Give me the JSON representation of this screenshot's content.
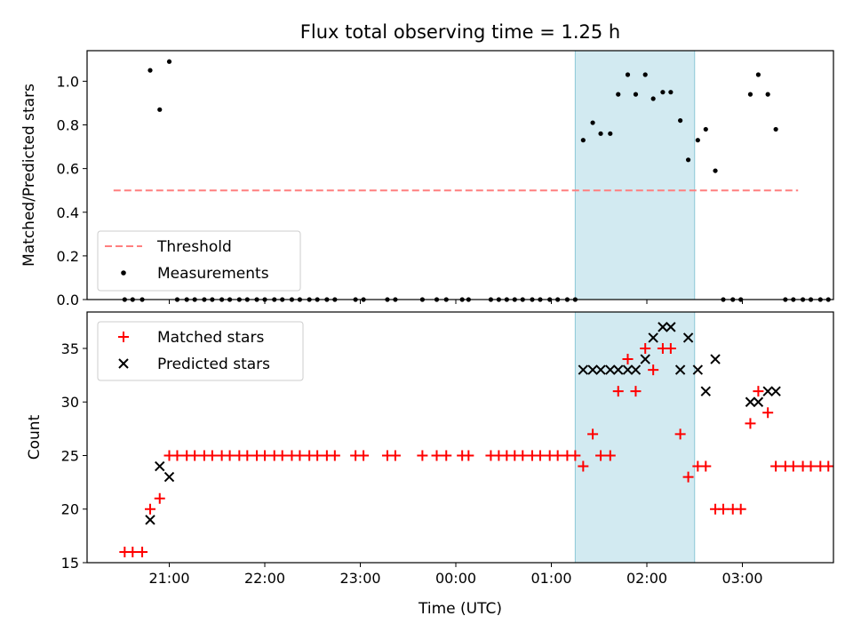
{
  "title": "Flux total observing time = 1.25 h",
  "xlabel": "Time (UTC)",
  "x_ticks": [
    "21:00",
    "22:00",
    "23:00",
    "00:00",
    "01:00",
    "02:00",
    "03:00"
  ],
  "colors": {
    "threshold": "#ff7f7f",
    "measurements": "#000000",
    "matched": "#ff0000",
    "predicted": "#000000",
    "observing_window": "#add8e6"
  },
  "observing_window": {
    "start": "01:15",
    "end": "02:30"
  },
  "chart_data": [
    {
      "type": "scatter",
      "ylabel": "Matched/Predicted stars",
      "ylim": [
        0,
        1.14
      ],
      "yticks": [
        "0.0",
        "0.2",
        "0.4",
        "0.6",
        "0.8",
        "1.0"
      ],
      "legend_position": "lower-left",
      "threshold": {
        "name": "Threshold",
        "value": 0.5,
        "x_start": "20:25",
        "x_end": "03:35"
      },
      "series": [
        {
          "name": "Measurements",
          "points": [
            [
              "20:32",
              0
            ],
            [
              "20:37",
              0
            ],
            [
              "20:43",
              0
            ],
            [
              "20:48",
              1.05
            ],
            [
              "20:54",
              0.87
            ],
            [
              "21:00",
              1.09
            ],
            [
              "21:05",
              0
            ],
            [
              "21:11",
              0
            ],
            [
              "21:16",
              0
            ],
            [
              "21:22",
              0
            ],
            [
              "21:27",
              0
            ],
            [
              "21:33",
              0
            ],
            [
              "21:38",
              0
            ],
            [
              "21:44",
              0
            ],
            [
              "21:49",
              0
            ],
            [
              "21:55",
              0
            ],
            [
              "22:00",
              0
            ],
            [
              "22:06",
              0
            ],
            [
              "22:11",
              0
            ],
            [
              "22:17",
              0
            ],
            [
              "22:22",
              0
            ],
            [
              "22:28",
              0
            ],
            [
              "22:33",
              0
            ],
            [
              "22:39",
              0
            ],
            [
              "22:44",
              0
            ],
            [
              "22:57",
              0
            ],
            [
              "23:02",
              0
            ],
            [
              "23:17",
              0
            ],
            [
              "23:22",
              0
            ],
            [
              "23:39",
              0
            ],
            [
              "23:48",
              0
            ],
            [
              "23:54",
              0
            ],
            [
              "00:04",
              0
            ],
            [
              "00:08",
              0
            ],
            [
              "00:22",
              0
            ],
            [
              "00:27",
              0
            ],
            [
              "00:32",
              0
            ],
            [
              "00:37",
              0
            ],
            [
              "00:42",
              0
            ],
            [
              "00:48",
              0
            ],
            [
              "00:53",
              0
            ],
            [
              "00:59",
              0
            ],
            [
              "01:04",
              0
            ],
            [
              "01:10",
              0
            ],
            [
              "01:15",
              0
            ],
            [
              "01:20",
              0.73
            ],
            [
              "01:26",
              0.81
            ],
            [
              "01:31",
              0.76
            ],
            [
              "01:37",
              0.76
            ],
            [
              "01:42",
              0.94
            ],
            [
              "01:48",
              1.03
            ],
            [
              "01:53",
              0.94
            ],
            [
              "01:59",
              1.03
            ],
            [
              "02:04",
              0.92
            ],
            [
              "02:10",
              0.95
            ],
            [
              "02:15",
              0.95
            ],
            [
              "02:21",
              0.82
            ],
            [
              "02:26",
              0.64
            ],
            [
              "02:32",
              0.73
            ],
            [
              "02:37",
              0.78
            ],
            [
              "02:43",
              0.59
            ],
            [
              "02:48",
              0
            ],
            [
              "02:54",
              0
            ],
            [
              "02:59",
              0
            ],
            [
              "03:05",
              0.94
            ],
            [
              "03:10",
              1.03
            ],
            [
              "03:16",
              0.94
            ],
            [
              "03:21",
              0.78
            ],
            [
              "03:27",
              0
            ],
            [
              "03:32",
              0
            ],
            [
              "03:38",
              0
            ],
            [
              "03:43",
              0
            ],
            [
              "03:49",
              0
            ],
            [
              "03:54",
              0
            ]
          ]
        }
      ]
    },
    {
      "type": "scatter",
      "ylabel": "Count",
      "ylim": [
        15,
        38.4
      ],
      "yticks": [
        "15",
        "20",
        "25",
        "30",
        "35"
      ],
      "legend_position": "upper-left",
      "series": [
        {
          "name": "Matched stars",
          "points": [
            [
              "20:32",
              16
            ],
            [
              "20:37",
              16
            ],
            [
              "20:43",
              16
            ],
            [
              "20:48",
              20
            ],
            [
              "20:54",
              21
            ],
            [
              "21:00",
              25
            ],
            [
              "21:05",
              25
            ],
            [
              "21:11",
              25
            ],
            [
              "21:16",
              25
            ],
            [
              "21:22",
              25
            ],
            [
              "21:27",
              25
            ],
            [
              "21:33",
              25
            ],
            [
              "21:38",
              25
            ],
            [
              "21:44",
              25
            ],
            [
              "21:49",
              25
            ],
            [
              "21:55",
              25
            ],
            [
              "22:00",
              25
            ],
            [
              "22:06",
              25
            ],
            [
              "22:11",
              25
            ],
            [
              "22:17",
              25
            ],
            [
              "22:22",
              25
            ],
            [
              "22:28",
              25
            ],
            [
              "22:33",
              25
            ],
            [
              "22:39",
              25
            ],
            [
              "22:44",
              25
            ],
            [
              "22:57",
              25
            ],
            [
              "23:02",
              25
            ],
            [
              "23:17",
              25
            ],
            [
              "23:22",
              25
            ],
            [
              "23:39",
              25
            ],
            [
              "23:48",
              25
            ],
            [
              "23:54",
              25
            ],
            [
              "00:04",
              25
            ],
            [
              "00:08",
              25
            ],
            [
              "00:22",
              25
            ],
            [
              "00:27",
              25
            ],
            [
              "00:32",
              25
            ],
            [
              "00:37",
              25
            ],
            [
              "00:42",
              25
            ],
            [
              "00:48",
              25
            ],
            [
              "00:53",
              25
            ],
            [
              "00:59",
              25
            ],
            [
              "01:04",
              25
            ],
            [
              "01:10",
              25
            ],
            [
              "01:15",
              25
            ],
            [
              "01:20",
              24
            ],
            [
              "01:26",
              27
            ],
            [
              "01:31",
              25
            ],
            [
              "01:37",
              25
            ],
            [
              "01:42",
              31
            ],
            [
              "01:48",
              34
            ],
            [
              "01:53",
              31
            ],
            [
              "01:59",
              35
            ],
            [
              "02:04",
              33
            ],
            [
              "02:10",
              35
            ],
            [
              "02:15",
              35
            ],
            [
              "02:21",
              27
            ],
            [
              "02:26",
              23
            ],
            [
              "02:32",
              24
            ],
            [
              "02:37",
              24
            ],
            [
              "02:43",
              20
            ],
            [
              "02:48",
              20
            ],
            [
              "02:54",
              20
            ],
            [
              "02:59",
              20
            ],
            [
              "03:05",
              28
            ],
            [
              "03:10",
              31
            ],
            [
              "03:16",
              29
            ],
            [
              "03:21",
              24
            ],
            [
              "03:27",
              24
            ],
            [
              "03:32",
              24
            ],
            [
              "03:38",
              24
            ],
            [
              "03:43",
              24
            ],
            [
              "03:49",
              24
            ],
            [
              "03:54",
              24
            ]
          ]
        },
        {
          "name": "Predicted stars",
          "points": [
            [
              "20:48",
              19
            ],
            [
              "20:54",
              24
            ],
            [
              "21:00",
              23
            ],
            [
              "01:20",
              33
            ],
            [
              "01:26",
              33
            ],
            [
              "01:31",
              33
            ],
            [
              "01:37",
              33
            ],
            [
              "01:42",
              33
            ],
            [
              "01:48",
              33
            ],
            [
              "01:53",
              33
            ],
            [
              "01:59",
              34
            ],
            [
              "02:04",
              36
            ],
            [
              "02:10",
              37
            ],
            [
              "02:15",
              37
            ],
            [
              "02:21",
              33
            ],
            [
              "02:26",
              36
            ],
            [
              "02:32",
              33
            ],
            [
              "02:37",
              31
            ],
            [
              "02:43",
              34
            ],
            [
              "03:05",
              30
            ],
            [
              "03:10",
              30
            ],
            [
              "03:16",
              31
            ],
            [
              "03:21",
              31
            ]
          ]
        }
      ]
    }
  ]
}
